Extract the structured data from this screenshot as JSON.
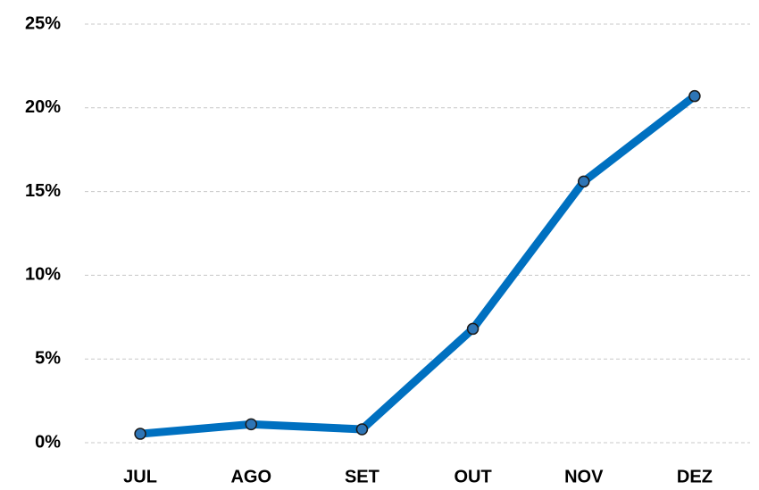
{
  "chart_data": {
    "type": "line",
    "categories": [
      "JUL",
      "AGO",
      "SET",
      "OUT",
      "NOV",
      "DEZ"
    ],
    "values": [
      0.53,
      1.1,
      0.8,
      6.8,
      15.6,
      20.7
    ],
    "color": "#0070c0",
    "marker_color": "#2e75b6",
    "ylim": [
      0,
      25
    ],
    "yticks": [
      {
        "value": 0,
        "label": "0%"
      },
      {
        "value": 5,
        "label": "5%"
      },
      {
        "value": 10,
        "label": "10%"
      },
      {
        "value": 15,
        "label": "15%"
      },
      {
        "value": 20,
        "label": "20%"
      },
      {
        "value": 25,
        "label": "25%"
      }
    ],
    "grid": true
  }
}
